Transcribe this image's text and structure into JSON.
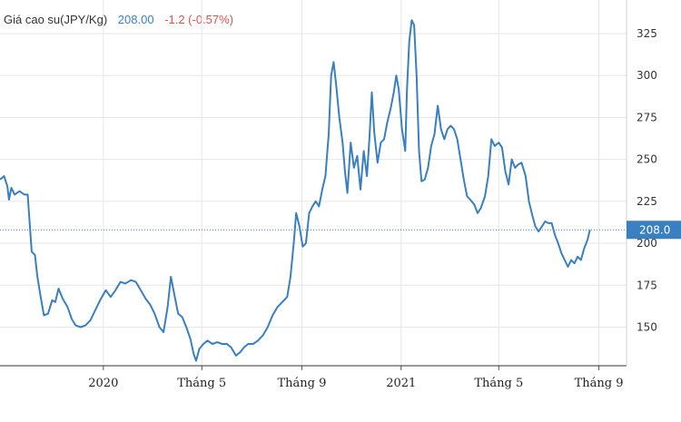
{
  "header": {
    "title": "Giá cao su(JPY/Kg)",
    "last": "208.00",
    "change": "-1.2 (-0.57%)"
  },
  "colors": {
    "line": "#3a7fc0",
    "grid": "#e6e6e6",
    "badge": "#3a7fc0",
    "change_negative": "#d9534f"
  },
  "chart_data": {
    "type": "line",
    "title": "",
    "xlabel": "",
    "ylabel": "",
    "grid": true,
    "ylim": [
      127,
      345
    ],
    "y_ticks": [
      150,
      175,
      200,
      225,
      250,
      275,
      300,
      325
    ],
    "y_tick_labels": [
      "150",
      "175",
      "200",
      "225",
      "250",
      "275",
      "300",
      "325"
    ],
    "x_ticks": [
      {
        "label": "2020",
        "x": "2020-01-01"
      },
      {
        "label": "Tháng 5",
        "x": "2020-05-01"
      },
      {
        "label": "Tháng 9",
        "x": "2020-09-01"
      },
      {
        "label": "2021",
        "x": "2021-01-01"
      },
      {
        "label": "Tháng 5",
        "x": "2021-05-01"
      },
      {
        "label": "Tháng 9",
        "x": "2021-09-01"
      }
    ],
    "xlim": [
      "2019-08-27",
      "2021-10-05"
    ],
    "reference_line": {
      "value": 208.0,
      "label": "208.0"
    },
    "series": [
      {
        "points": [
          [
            "2019-08-27",
            238
          ],
          [
            "2019-09-01",
            240
          ],
          [
            "2019-09-05",
            234
          ],
          [
            "2019-09-07",
            226
          ],
          [
            "2019-09-10",
            233
          ],
          [
            "2019-09-14",
            229
          ],
          [
            "2019-09-20",
            231
          ],
          [
            "2019-09-26",
            229
          ],
          [
            "2019-09-30",
            229
          ],
          [
            "2019-10-02",
            215
          ],
          [
            "2019-10-05",
            195
          ],
          [
            "2019-10-09",
            193
          ],
          [
            "2019-10-12",
            180
          ],
          [
            "2019-10-16",
            168
          ],
          [
            "2019-10-20",
            157
          ],
          [
            "2019-10-25",
            158
          ],
          [
            "2019-10-30",
            166
          ],
          [
            "2019-11-03",
            165
          ],
          [
            "2019-11-07",
            173
          ],
          [
            "2019-11-12",
            167
          ],
          [
            "2019-11-18",
            162
          ],
          [
            "2019-11-23",
            155
          ],
          [
            "2019-11-28",
            151
          ],
          [
            "2019-12-04",
            150
          ],
          [
            "2019-12-10",
            151
          ],
          [
            "2019-12-16",
            154
          ],
          [
            "2019-12-22",
            160
          ],
          [
            "2019-12-28",
            166
          ],
          [
            "2020-01-04",
            172
          ],
          [
            "2020-01-10",
            168
          ],
          [
            "2020-01-16",
            172
          ],
          [
            "2020-01-22",
            177
          ],
          [
            "2020-01-28",
            176
          ],
          [
            "2020-02-04",
            178
          ],
          [
            "2020-02-10",
            177
          ],
          [
            "2020-02-16",
            172
          ],
          [
            "2020-02-22",
            167
          ],
          [
            "2020-02-28",
            163
          ],
          [
            "2020-03-04",
            158
          ],
          [
            "2020-03-10",
            150
          ],
          [
            "2020-03-15",
            147
          ],
          [
            "2020-03-20",
            162
          ],
          [
            "2020-03-24",
            180
          ],
          [
            "2020-03-28",
            170
          ],
          [
            "2020-04-02",
            158
          ],
          [
            "2020-04-07",
            156
          ],
          [
            "2020-04-12",
            150
          ],
          [
            "2020-04-17",
            143
          ],
          [
            "2020-04-21",
            134
          ],
          [
            "2020-04-24",
            130
          ],
          [
            "2020-04-28",
            137
          ],
          [
            "2020-05-03",
            140
          ],
          [
            "2020-05-08",
            142
          ],
          [
            "2020-05-14",
            140
          ],
          [
            "2020-05-20",
            141
          ],
          [
            "2020-05-26",
            140
          ],
          [
            "2020-06-01",
            140
          ],
          [
            "2020-06-06",
            138
          ],
          [
            "2020-06-12",
            133
          ],
          [
            "2020-06-17",
            135
          ],
          [
            "2020-06-22",
            138
          ],
          [
            "2020-06-27",
            140
          ],
          [
            "2020-07-03",
            140
          ],
          [
            "2020-07-09",
            142
          ],
          [
            "2020-07-15",
            145
          ],
          [
            "2020-07-21",
            150
          ],
          [
            "2020-07-27",
            157
          ],
          [
            "2020-08-02",
            162
          ],
          [
            "2020-08-08",
            165
          ],
          [
            "2020-08-14",
            168
          ],
          [
            "2020-08-18",
            180
          ],
          [
            "2020-08-22",
            200
          ],
          [
            "2020-08-25",
            218
          ],
          [
            "2020-08-29",
            210
          ],
          [
            "2020-09-02",
            198
          ],
          [
            "2020-09-06",
            200
          ],
          [
            "2020-09-10",
            218
          ],
          [
            "2020-09-14",
            222
          ],
          [
            "2020-09-18",
            225
          ],
          [
            "2020-09-22",
            222
          ],
          [
            "2020-09-26",
            232
          ],
          [
            "2020-09-30",
            240
          ],
          [
            "2020-10-04",
            265
          ],
          [
            "2020-10-07",
            300
          ],
          [
            "2020-10-10",
            308
          ],
          [
            "2020-10-13",
            295
          ],
          [
            "2020-10-17",
            275
          ],
          [
            "2020-10-21",
            260
          ],
          [
            "2020-10-24",
            243
          ],
          [
            "2020-10-27",
            230
          ],
          [
            "2020-10-31",
            260
          ],
          [
            "2020-11-04",
            245
          ],
          [
            "2020-11-08",
            252
          ],
          [
            "2020-11-12",
            232
          ],
          [
            "2020-11-16",
            255
          ],
          [
            "2020-11-20",
            240
          ],
          [
            "2020-11-23",
            262
          ],
          [
            "2020-11-26",
            290
          ],
          [
            "2020-11-29",
            266
          ],
          [
            "2020-12-03",
            248
          ],
          [
            "2020-12-07",
            260
          ],
          [
            "2020-12-11",
            262
          ],
          [
            "2020-12-15",
            272
          ],
          [
            "2020-12-19",
            280
          ],
          [
            "2020-12-23",
            290
          ],
          [
            "2020-12-26",
            300
          ],
          [
            "2020-12-29",
            292
          ],
          [
            "2021-01-02",
            268
          ],
          [
            "2021-01-06",
            255
          ],
          [
            "2021-01-08",
            290
          ],
          [
            "2021-01-11",
            320
          ],
          [
            "2021-01-14",
            333
          ],
          [
            "2021-01-17",
            330
          ],
          [
            "2021-01-20",
            300
          ],
          [
            "2021-01-23",
            255
          ],
          [
            "2021-01-26",
            237
          ],
          [
            "2021-01-30",
            238
          ],
          [
            "2021-02-03",
            245
          ],
          [
            "2021-02-07",
            258
          ],
          [
            "2021-02-11",
            265
          ],
          [
            "2021-02-15",
            282
          ],
          [
            "2021-02-19",
            268
          ],
          [
            "2021-02-23",
            262
          ],
          [
            "2021-02-27",
            268
          ],
          [
            "2021-03-03",
            270
          ],
          [
            "2021-03-07",
            268
          ],
          [
            "2021-03-11",
            262
          ],
          [
            "2021-03-15",
            250
          ],
          [
            "2021-03-19",
            238
          ],
          [
            "2021-03-23",
            228
          ],
          [
            "2021-03-27",
            226
          ],
          [
            "2021-04-01",
            223
          ],
          [
            "2021-04-05",
            218
          ],
          [
            "2021-04-09",
            221
          ],
          [
            "2021-04-14",
            228
          ],
          [
            "2021-04-18",
            240
          ],
          [
            "2021-04-22",
            262
          ],
          [
            "2021-04-26",
            258
          ],
          [
            "2021-05-01",
            260
          ],
          [
            "2021-05-05",
            257
          ],
          [
            "2021-05-09",
            243
          ],
          [
            "2021-05-13",
            235
          ],
          [
            "2021-05-17",
            250
          ],
          [
            "2021-05-21",
            245
          ],
          [
            "2021-05-25",
            247
          ],
          [
            "2021-05-29",
            248
          ],
          [
            "2021-06-03",
            240
          ],
          [
            "2021-06-07",
            225
          ],
          [
            "2021-06-11",
            217
          ],
          [
            "2021-06-15",
            210
          ],
          [
            "2021-06-19",
            207
          ],
          [
            "2021-06-23",
            210
          ],
          [
            "2021-06-27",
            213
          ],
          [
            "2021-07-01",
            212
          ],
          [
            "2021-07-05",
            212
          ],
          [
            "2021-07-09",
            205
          ],
          [
            "2021-07-13",
            200
          ],
          [
            "2021-07-17",
            194
          ],
          [
            "2021-07-21",
            190
          ],
          [
            "2021-07-25",
            186
          ],
          [
            "2021-07-29",
            190
          ],
          [
            "2021-08-02",
            188
          ],
          [
            "2021-08-06",
            192
          ],
          [
            "2021-08-10",
            190
          ],
          [
            "2021-08-14",
            197
          ],
          [
            "2021-08-18",
            202
          ],
          [
            "2021-08-21",
            208
          ]
        ]
      }
    ]
  }
}
